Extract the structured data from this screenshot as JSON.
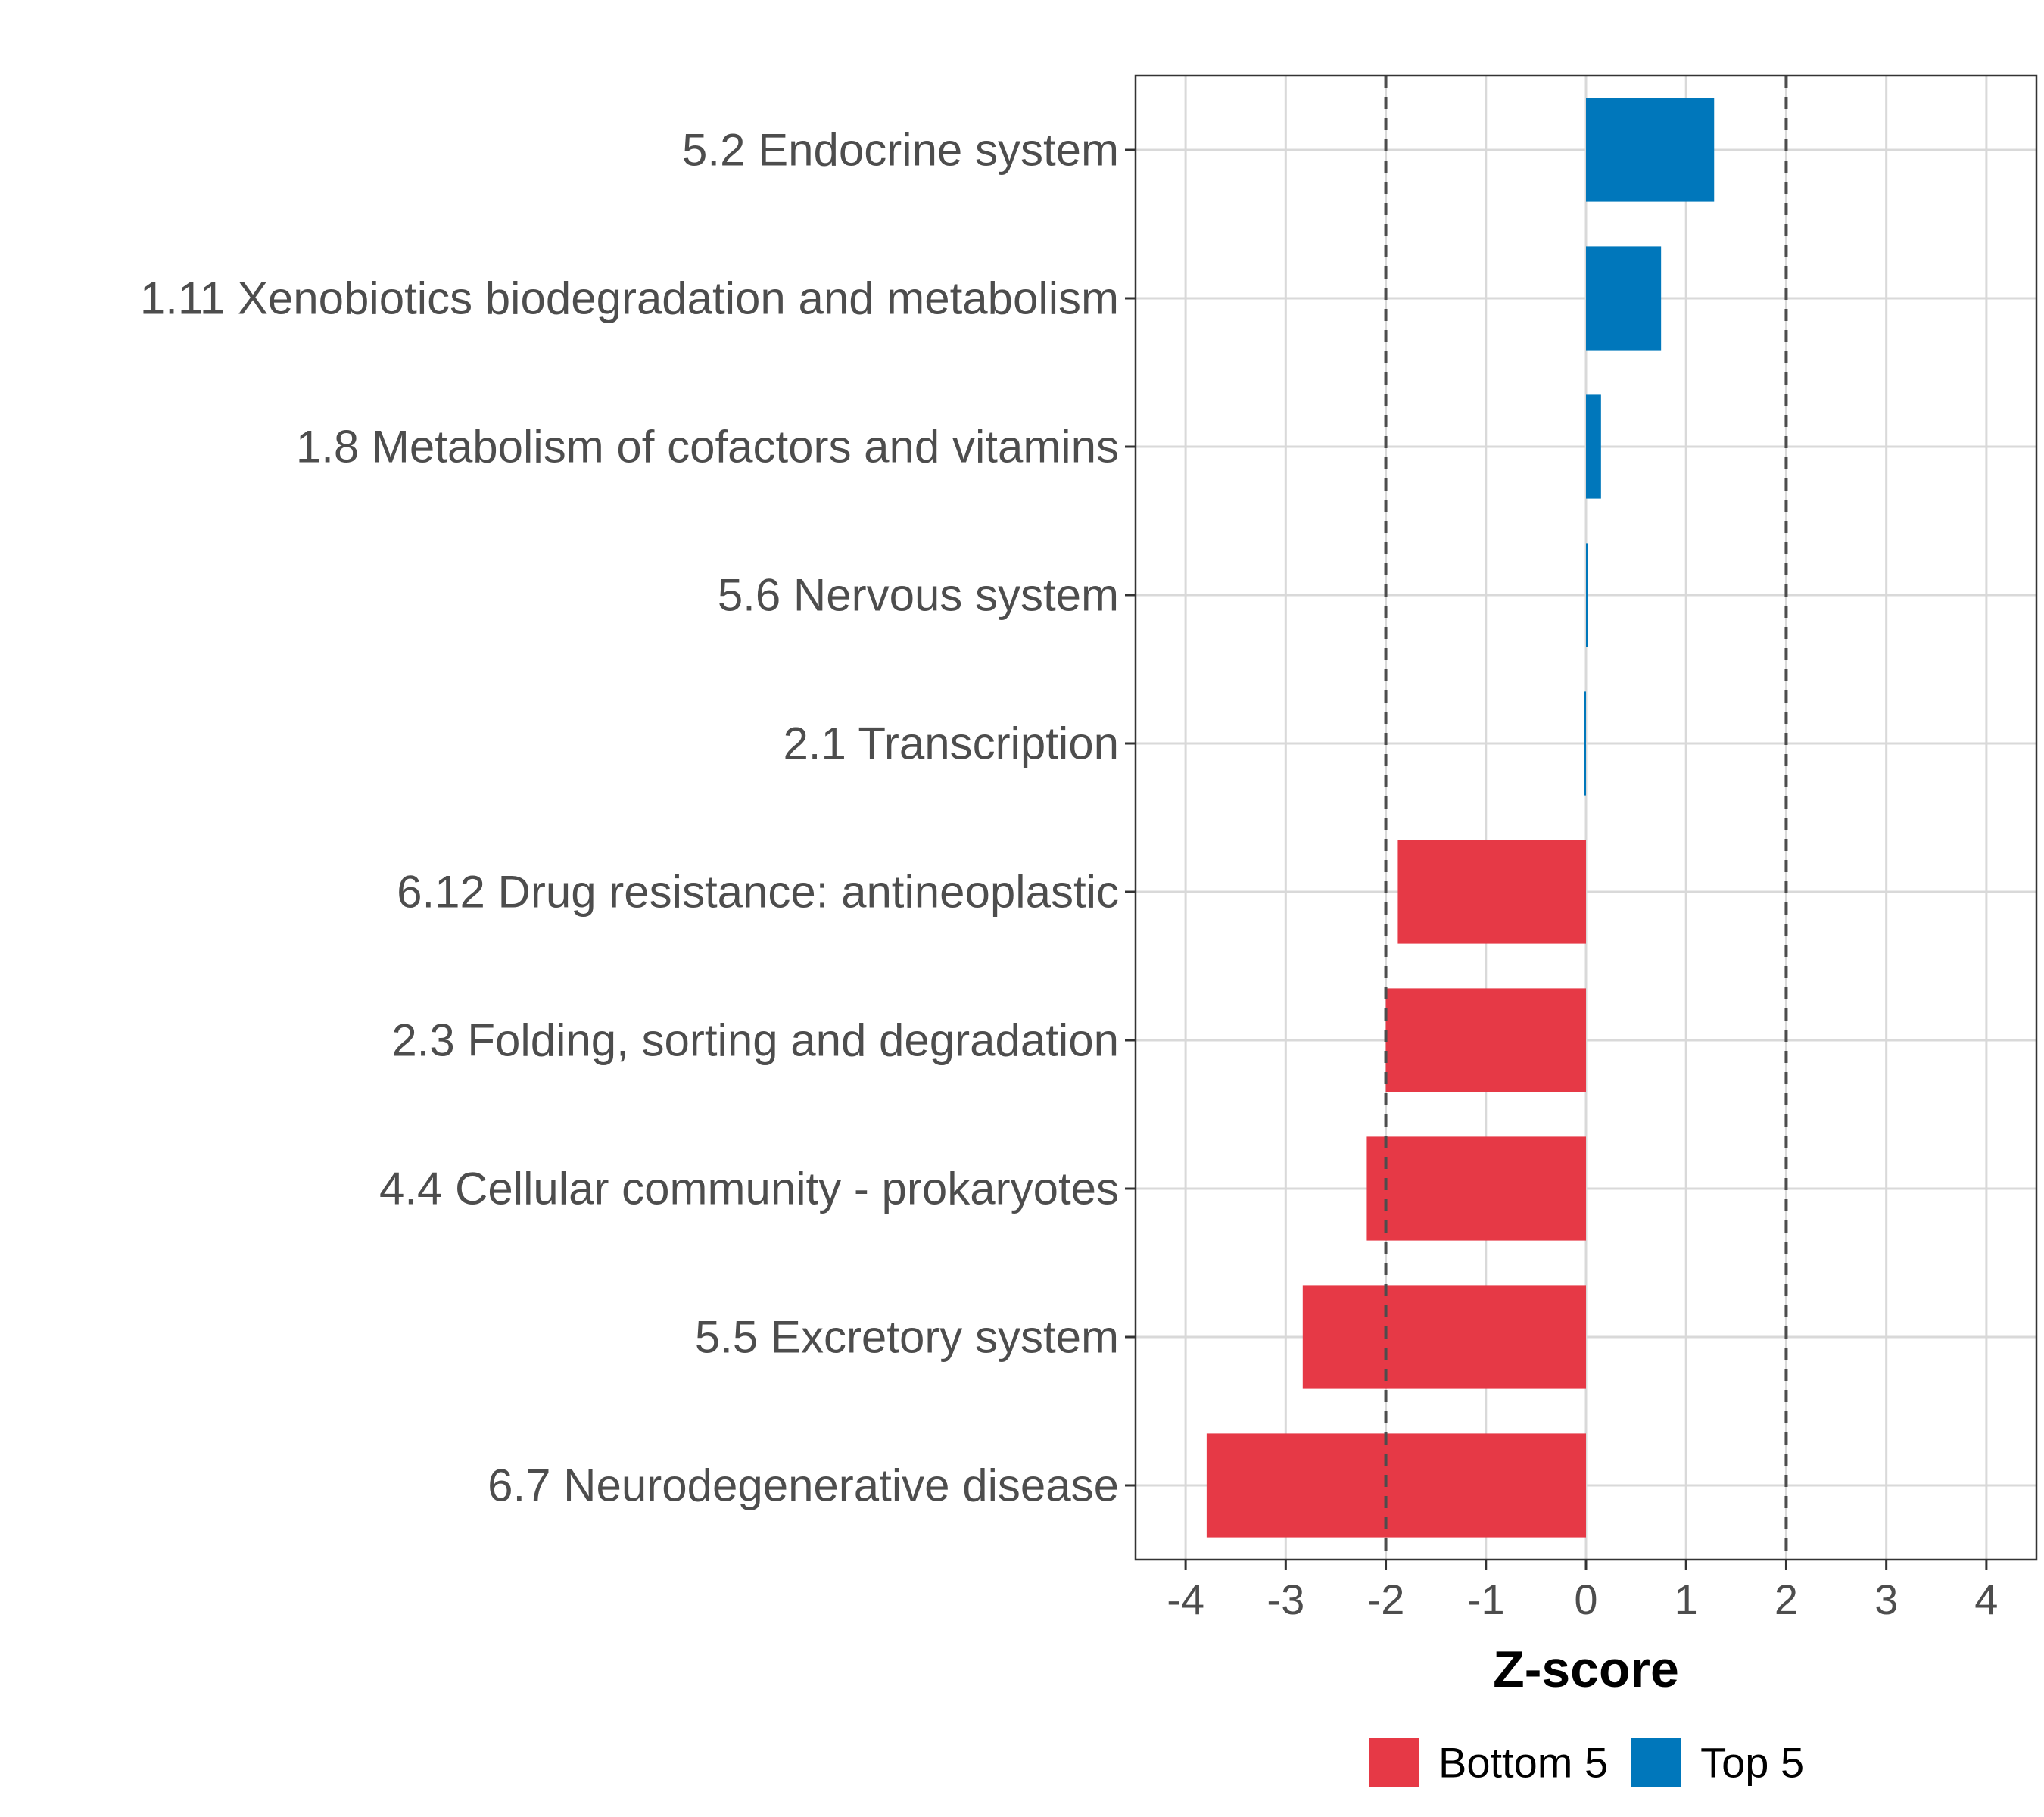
{
  "chart_data": {
    "type": "bar",
    "orientation": "horizontal",
    "title": "",
    "xlabel": "Z-score",
    "ylabel": "",
    "xlim": [
      -4.5,
      4.5
    ],
    "x_ticks": [
      -4,
      -3,
      -2,
      -1,
      0,
      1,
      2,
      3,
      4
    ],
    "x_tick_labels": [
      "-4",
      "-3",
      "-2",
      "-1",
      "0",
      "1",
      "2",
      "3",
      "4"
    ],
    "reference_lines": [
      -2,
      2
    ],
    "grid": true,
    "categories": [
      "5.2 Endocrine system",
      "1.11 Xenobiotics biodegradation and metabolism",
      "1.8 Metabolism of cofactors and vitamins",
      "5.6 Nervous system",
      "2.1 Transcription",
      "6.12 Drug resistance: antineoplastic",
      "2.3 Folding, sorting and degradation",
      "4.4 Cellular community - prokaryotes",
      "5.5 Excretory system",
      "6.7 Neurodegenerative disease"
    ],
    "values": [
      1.28,
      0.75,
      0.15,
      0.0,
      -0.02,
      -1.88,
      -2.0,
      -2.19,
      -2.83,
      -3.79
    ],
    "groups": [
      "Top 5",
      "Top 5",
      "Top 5",
      "Top 5",
      "Top 5",
      "Bottom 5",
      "Bottom 5",
      "Bottom 5",
      "Bottom 5",
      "Bottom 5"
    ],
    "legend": [
      {
        "name": "Bottom 5",
        "color": "#e63946"
      },
      {
        "name": "Top 5",
        "color": "#0077bb"
      }
    ],
    "legend_position": "bottom"
  }
}
